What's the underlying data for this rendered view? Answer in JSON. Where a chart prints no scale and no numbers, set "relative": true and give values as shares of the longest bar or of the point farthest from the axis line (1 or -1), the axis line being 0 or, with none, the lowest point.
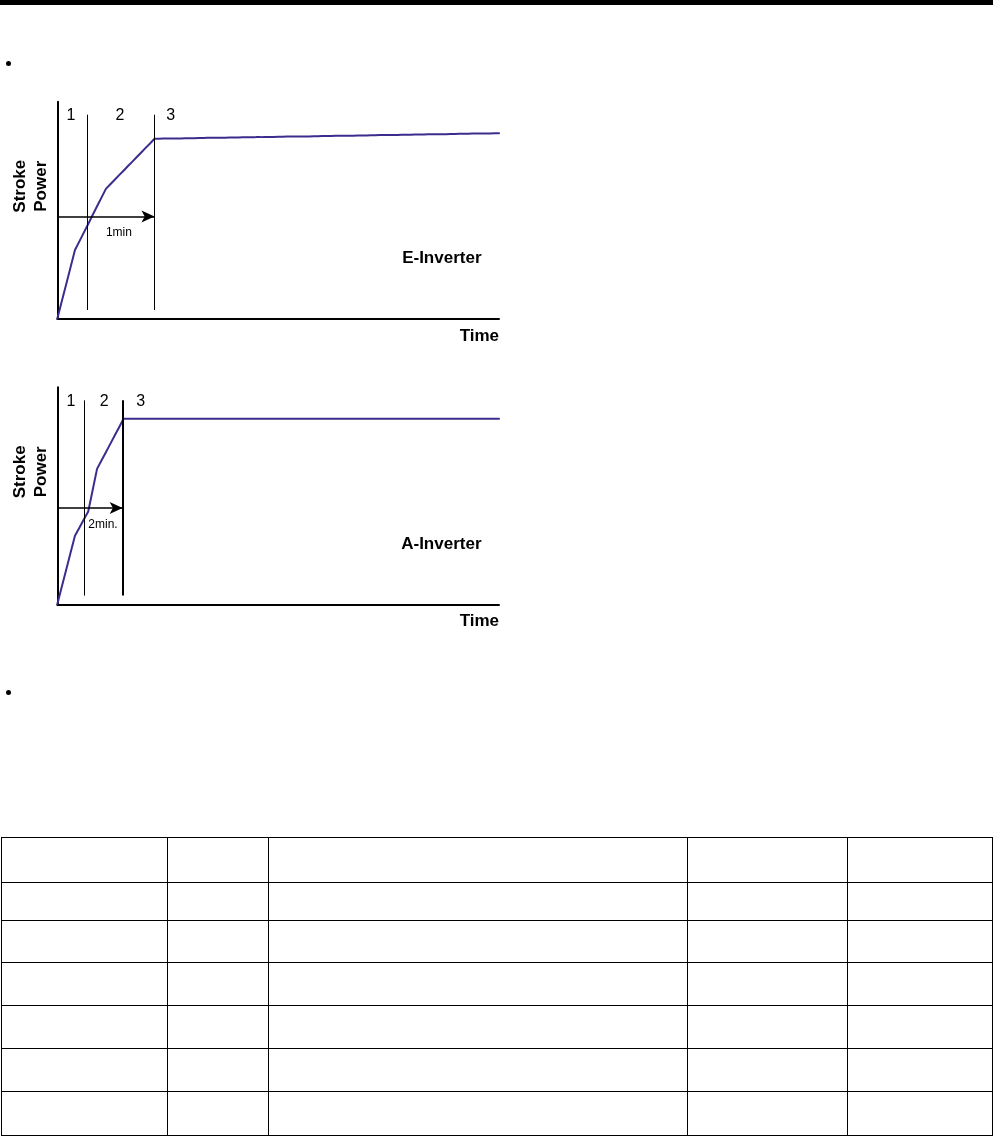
{
  "chart_data": [
    {
      "type": "line",
      "title": "E-Inverter",
      "xlabel": "Time",
      "ylabel": "Stroke Power",
      "relative": true,
      "tick_labels": false,
      "line_style": "solid",
      "color": "#3c2c8e",
      "categories": [
        null,
        null,
        null,
        null,
        null,
        null,
        null,
        null,
        null,
        null,
        null,
        null,
        null,
        null,
        null,
        null,
        null,
        null,
        null,
        null,
        null,
        null,
        null,
        null,
        null,
        null,
        null,
        null,
        null,
        null,
        null,
        null,
        null,
        null,
        null,
        null,
        null,
        null,
        null,
        null,
        null,
        null,
        null,
        null,
        null,
        null,
        null,
        null,
        null,
        null,
        null,
        null,
        null,
        null,
        null,
        null,
        null,
        null,
        null,
        null,
        null,
        null,
        null,
        null,
        null,
        null,
        null,
        null,
        null,
        null,
        null,
        null,
        null,
        null,
        null,
        null,
        null,
        null,
        null,
        null,
        null,
        null,
        null,
        null,
        null,
        null,
        null,
        null,
        null,
        null,
        null,
        null,
        null,
        null,
        null,
        null,
        null,
        null,
        null,
        null,
        null
      ],
      "values": [
        0,
        0.093,
        0.185,
        0.278,
        0.37,
        0.417,
        0.464,
        0.511,
        0.559,
        0.606,
        0.653,
        0.7,
        0.725,
        0.749,
        0.774,
        0.798,
        0.823,
        0.847,
        0.872,
        0.896,
        0.921,
        0.945,
        0.97,
        0.97,
        0.971,
        0.971,
        0.972,
        0.972,
        0.972,
        0.973,
        0.973,
        0.973,
        0.974,
        0.974,
        0.975,
        0.975,
        0.975,
        0.976,
        0.976,
        0.977,
        0.977,
        0.977,
        0.978,
        0.978,
        0.978,
        0.979,
        0.979,
        0.98,
        0.98,
        0.98,
        0.981,
        0.981,
        0.982,
        0.982,
        0.982,
        0.983,
        0.983,
        0.983,
        0.984,
        0.984,
        0.985,
        0.985,
        0.985,
        0.986,
        0.986,
        0.987,
        0.987,
        0.987,
        0.988,
        0.988,
        0.988,
        0.989,
        0.989,
        0.99,
        0.99,
        0.99,
        0.991,
        0.991,
        0.992,
        0.992,
        0.992,
        0.993,
        0.993,
        0.993,
        0.994,
        0.994,
        0.995,
        0.995,
        0.995,
        0.996,
        0.996,
        0.997,
        0.997,
        0.997,
        0.998,
        0.998,
        0.998,
        0.999,
        0.999,
        1,
        1
      ],
      "annotations": [
        "1",
        "2",
        "3",
        "1min"
      ]
    },
    {
      "type": "line",
      "title": "A-Inverter",
      "xlabel": "Time",
      "ylabel": "Stroke Power",
      "relative": true,
      "tick_labels": false,
      "line_style": "solid",
      "color": "#3c2c8e",
      "categories": [
        null,
        null,
        null,
        null,
        null,
        null,
        null,
        null,
        null,
        null,
        null,
        null,
        null,
        null,
        null,
        null,
        null,
        null,
        null,
        null,
        null,
        null,
        null,
        null,
        null,
        null,
        null,
        null,
        null,
        null,
        null,
        null,
        null,
        null,
        null,
        null,
        null,
        null,
        null,
        null,
        null,
        null,
        null,
        null,
        null,
        null,
        null,
        null,
        null,
        null,
        null,
        null,
        null,
        null,
        null,
        null,
        null,
        null,
        null,
        null,
        null,
        null,
        null,
        null,
        null,
        null,
        null,
        null,
        null,
        null,
        null,
        null,
        null,
        null,
        null,
        null,
        null,
        null,
        null,
        null,
        null,
        null,
        null,
        null,
        null,
        null,
        null,
        null,
        null,
        null,
        null,
        null,
        null,
        null,
        null,
        null,
        null,
        null,
        null,
        null,
        null
      ],
      "values": [
        0,
        0.093,
        0.185,
        0.278,
        0.37,
        0.413,
        0.457,
        0.5,
        0.615,
        0.73,
        0.775,
        0.82,
        0.865,
        0.91,
        0.955,
        1,
        1,
        1,
        1,
        1,
        1,
        1,
        1,
        1,
        1,
        1,
        1,
        1,
        1,
        1,
        1,
        1,
        1,
        1,
        1,
        1,
        1,
        1,
        1,
        1,
        1,
        1,
        1,
        1,
        1,
        1,
        1,
        1,
        1,
        1,
        1,
        1,
        1,
        1,
        1,
        1,
        1,
        1,
        1,
        1,
        1,
        1,
        1,
        1,
        1,
        1,
        1,
        1,
        1,
        1,
        1,
        1,
        1,
        1,
        1,
        1,
        1,
        1,
        1,
        1,
        1,
        1,
        1,
        1,
        1,
        1,
        1,
        1,
        1,
        1,
        1,
        1,
        1,
        1,
        1,
        1,
        1,
        1,
        1,
        1,
        1
      ],
      "annotations": [
        "1",
        "2",
        "3",
        "2min."
      ]
    }
  ]
}
